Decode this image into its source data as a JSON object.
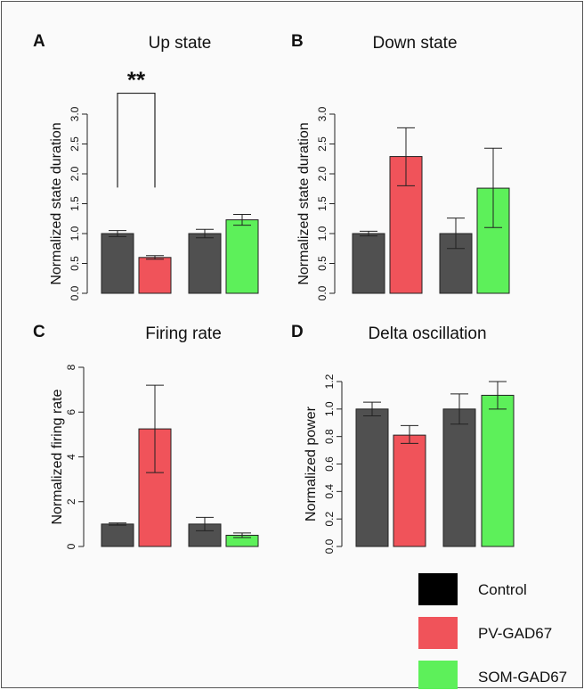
{
  "chart_data": [
    {
      "type": "bar",
      "letter": "A",
      "title": "Up state",
      "ylabel": "Normalized state duration",
      "ylim": [
        0,
        3.0
      ],
      "yticks": [
        "0.0",
        "0.5",
        "1.0",
        "1.5",
        "2.0",
        "2.5",
        "3.0"
      ],
      "bars": [
        {
          "group": "Control",
          "value": 1.0,
          "err_low": 0.95,
          "err_high": 1.05
        },
        {
          "group": "PV-GAD67",
          "value": 0.6,
          "err_low": 0.57,
          "err_high": 0.63
        },
        {
          "group": "Control",
          "value": 1.0,
          "err_low": 0.93,
          "err_high": 1.07
        },
        {
          "group": "SOM-GAD67",
          "value": 1.23,
          "err_low": 1.14,
          "err_high": 1.32
        }
      ],
      "significance": {
        "label": "**",
        "from_bar": 0,
        "to_bar": 1,
        "bracket_low": 1.77,
        "bracket_high": 3.35
      }
    },
    {
      "type": "bar",
      "letter": "B",
      "title": "Down state",
      "ylabel": "Normalized state duration",
      "ylim": [
        0,
        3.0
      ],
      "yticks": [
        "0.0",
        "0.5",
        "1.0",
        "1.5",
        "2.0",
        "2.5",
        "3.0"
      ],
      "bars": [
        {
          "group": "Control",
          "value": 1.0,
          "err_low": 0.96,
          "err_high": 1.04
        },
        {
          "group": "PV-GAD67",
          "value": 2.29,
          "err_low": 1.8,
          "err_high": 2.77
        },
        {
          "group": "Control",
          "value": 1.0,
          "err_low": 0.75,
          "err_high": 1.26
        },
        {
          "group": "SOM-GAD67",
          "value": 1.76,
          "err_low": 1.1,
          "err_high": 2.43
        }
      ]
    },
    {
      "type": "bar",
      "letter": "C",
      "title": "Firing rate",
      "ylabel": "Normalized firing rate",
      "ylim": [
        0,
        8
      ],
      "yticks": [
        "0",
        "2",
        "4",
        "6",
        "8"
      ],
      "bars": [
        {
          "group": "Control",
          "value": 1.0,
          "err_low": 0.95,
          "err_high": 1.05
        },
        {
          "group": "PV-GAD67",
          "value": 5.25,
          "err_low": 3.3,
          "err_high": 7.2
        },
        {
          "group": "Control",
          "value": 1.0,
          "err_low": 0.7,
          "err_high": 1.3
        },
        {
          "group": "SOM-GAD67",
          "value": 0.5,
          "err_low": 0.4,
          "err_high": 0.6
        }
      ]
    },
    {
      "type": "bar",
      "letter": "D",
      "title": "Delta oscillation",
      "ylabel": "Normalized power",
      "ylim": [
        0,
        1.2
      ],
      "yticks": [
        "0.0",
        "0.2",
        "0.4",
        "0.6",
        "0.8",
        "1.0",
        "1.2"
      ],
      "bars": [
        {
          "group": "Control",
          "value": 1.0,
          "err_low": 0.95,
          "err_high": 1.05
        },
        {
          "group": "PV-GAD67",
          "value": 0.81,
          "err_low": 0.75,
          "err_high": 0.88
        },
        {
          "group": "Control",
          "value": 1.0,
          "err_low": 0.89,
          "err_high": 1.11
        },
        {
          "group": "SOM-GAD67",
          "value": 1.1,
          "err_low": 1.0,
          "err_high": 1.2
        }
      ]
    }
  ],
  "legend": {
    "placement": "bottom-right",
    "items": [
      {
        "label": "Control",
        "color": "#000000"
      },
      {
        "label": "PV-GAD67",
        "color": "#f0535a"
      },
      {
        "label": "SOM-GAD67",
        "color": "#5df05a"
      }
    ]
  },
  "colors": {
    "Control": "#505050",
    "PV-GAD67": "#f0535a",
    "SOM-GAD67": "#5df05a",
    "bar_stroke": "#222222"
  }
}
